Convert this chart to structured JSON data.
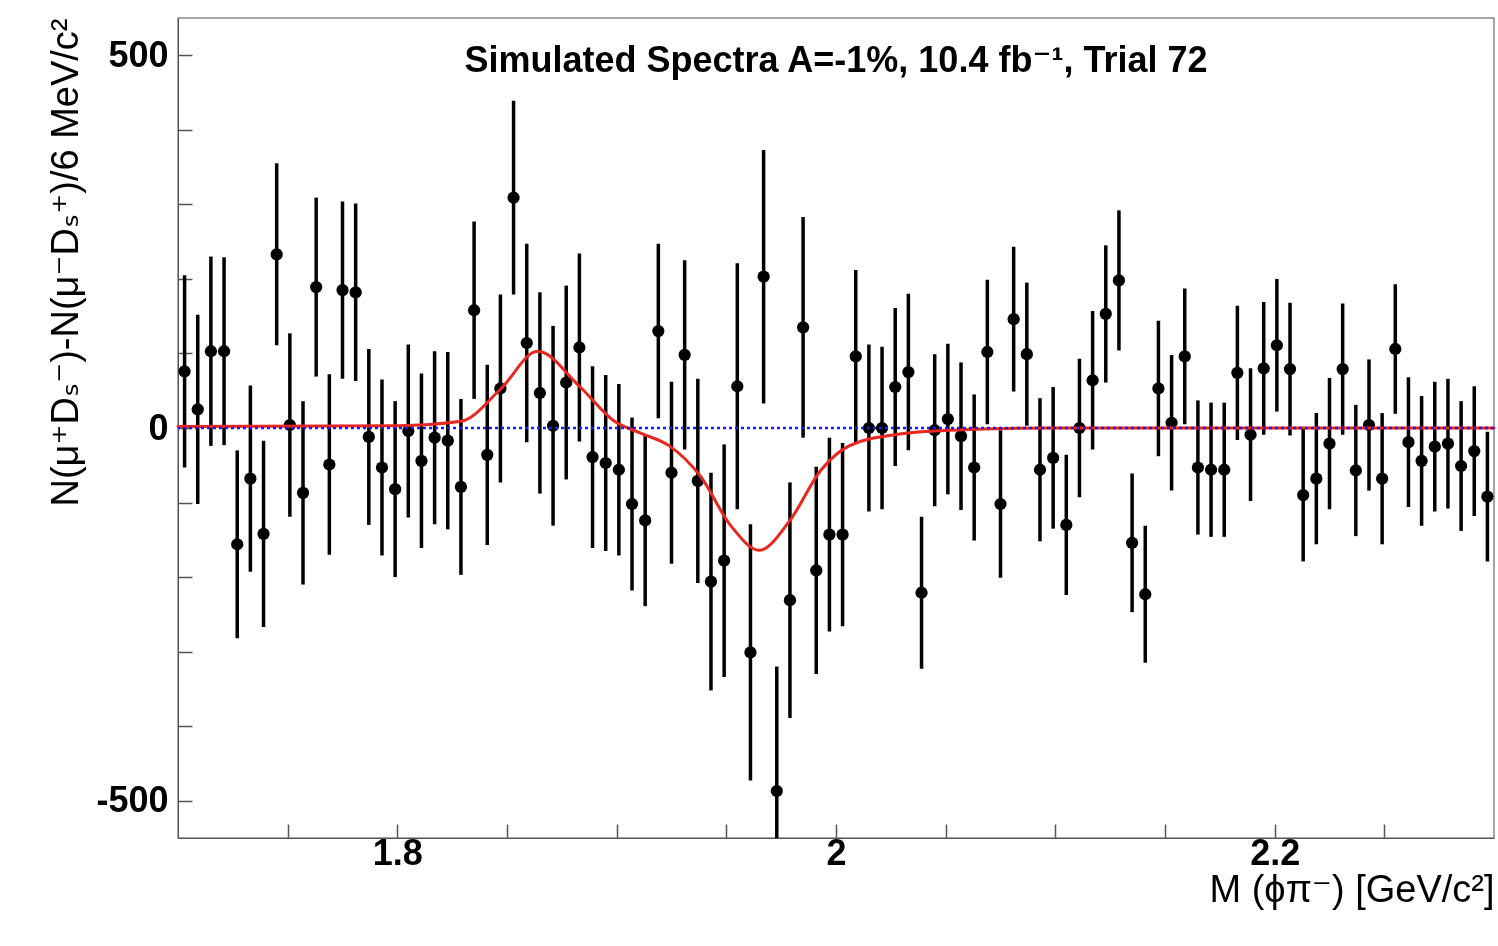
{
  "chart_data": {
    "type": "scatter",
    "title": "Simulated Spectra A=-1%, 10.4 fb⁻¹, Trial 72",
    "xlabel": "M (ϕπ⁻) [GeV/c²]",
    "ylabel": "N(μ⁺Dₛ⁻)-N(μ⁻Dₛ⁺)/6 MeV/c²",
    "x": [
      1.703,
      1.709,
      1.715,
      1.721,
      1.727,
      1.733,
      1.739,
      1.745,
      1.751,
      1.757,
      1.763,
      1.769,
      1.775,
      1.781,
      1.787,
      1.793,
      1.799,
      1.805,
      1.811,
      1.817,
      1.823,
      1.829,
      1.835,
      1.841,
      1.847,
      1.853,
      1.859,
      1.865,
      1.871,
      1.877,
      1.883,
      1.889,
      1.895,
      1.901,
      1.907,
      1.913,
      1.919,
      1.925,
      1.931,
      1.937,
      1.943,
      1.949,
      1.955,
      1.961,
      1.967,
      1.973,
      1.979,
      1.985,
      1.991,
      1.997,
      2.003,
      2.009,
      2.015,
      2.021,
      2.027,
      2.033,
      2.039,
      2.045,
      2.051,
      2.057,
      2.063,
      2.069,
      2.075,
      2.081,
      2.087,
      2.093,
      2.099,
      2.105,
      2.111,
      2.117,
      2.123,
      2.129,
      2.135,
      2.141,
      2.147,
      2.153,
      2.159,
      2.165,
      2.171,
      2.177,
      2.183,
      2.189,
      2.195,
      2.201,
      2.207,
      2.213,
      2.219,
      2.225,
      2.231,
      2.237,
      2.243,
      2.249,
      2.255,
      2.261,
      2.267,
      2.273,
      2.279,
      2.285,
      2.291,
      2.297
    ],
    "series": [
      {
        "type": "scatter",
        "color": "#000000",
        "marker": "circle",
        "values": [
          76,
          25,
          103,
          103,
          -156,
          -68,
          -142,
          233,
          4,
          -87,
          189,
          -49,
          185,
          182,
          -12,
          -53,
          -82,
          -4,
          -44,
          -13,
          -17,
          -79,
          158,
          -36,
          53,
          309,
          114,
          47,
          3,
          61,
          108,
          -39,
          -47,
          -56,
          -102,
          -124,
          130,
          -60,
          98,
          -71,
          -206,
          -178,
          56,
          -301,
          203,
          -487,
          -231,
          135,
          -191,
          -143,
          -143,
          96,
          0,
          0,
          55,
          75,
          -221,
          -3,
          12,
          -11,
          -53,
          102,
          -102,
          146,
          99,
          -56,
          -40,
          -130,
          0,
          64,
          153,
          198,
          -154,
          -223,
          53,
          7,
          96,
          -53,
          -56,
          -56,
          74,
          -9,
          80,
          111,
          79,
          -90,
          -68,
          -21,
          79,
          -57,
          4,
          -68,
          106,
          -19,
          -44,
          -25,
          -21,
          -51,
          -31,
          -92
        ],
        "errors": [
          129,
          127,
          127,
          126,
          126,
          125,
          125,
          122,
          123,
          123,
          120,
          121,
          119,
          119,
          118,
          118,
          118,
          116,
          117,
          116,
          119,
          118,
          119,
          121,
          126,
          130,
          133,
          135,
          134,
          130,
          126,
          122,
          118,
          115,
          116,
          115,
          117,
          122,
          127,
          137,
          146,
          156,
          165,
          172,
          170,
          [
            -550,
            -320
          ],
          158,
          148,
          139,
          130,
          123,
          116,
          112,
          109,
          106,
          105,
          102,
          102,
          101,
          99,
          98,
          97,
          99,
          97,
          96,
          96,
          95,
          94,
          93,
          93,
          92,
          94,
          93,
          92,
          91,
          91,
          91,
          90,
          90,
          90,
          90,
          89,
          89,
          89,
          89,
          89,
          88,
          88,
          88,
          88,
          88,
          88,
          87,
          87,
          87,
          87,
          87,
          87,
          87,
          87
        ]
      },
      {
        "type": "line",
        "color": "#e8281e",
        "line_style": "solid",
        "x": [
          1.7,
          1.8,
          1.829,
          1.847,
          1.864,
          1.883,
          1.899,
          1.911,
          1.924,
          1.938,
          1.952,
          1.965,
          1.979,
          1.993,
          2.006,
          2.029,
          2.052,
          2.1,
          2.3
        ],
        "values": [
          2,
          3,
          9,
          52,
          103,
          56,
          9,
          -7,
          -24,
          -64,
          -131,
          -164,
          -124,
          -57,
          -24,
          -8,
          -3,
          0,
          0
        ]
      }
    ],
    "xlim": [
      1.7,
      2.3
    ],
    "ylim": [
      -550,
      550
    ],
    "xticks": [
      {
        "value": 1.75,
        "label": null
      },
      1.8,
      {
        "value": 1.85,
        "label": null
      },
      {
        "value": 1.9,
        "label": null
      },
      {
        "value": 1.95,
        "label": null
      },
      2,
      {
        "value": 2.05,
        "label": null
      },
      {
        "value": 2.1,
        "label": null
      },
      {
        "value": 2.15,
        "label": null
      },
      2.2,
      {
        "value": 2.25,
        "label": null
      }
    ],
    "yticks": [
      -500,
      {
        "value": -400,
        "label": null
      },
      {
        "value": -300,
        "label": null
      },
      {
        "value": -200,
        "label": null
      },
      {
        "value": -100,
        "label": null
      },
      0,
      {
        "value": 100,
        "label": null
      },
      {
        "value": 200,
        "label": null
      },
      {
        "value": 300,
        "label": null
      },
      {
        "value": 400,
        "label": null
      },
      500
    ],
    "ref_lines": [
      {
        "axis": "y",
        "value": 0,
        "color": "#1a1aff",
        "line_style": "dotted"
      }
    ]
  }
}
